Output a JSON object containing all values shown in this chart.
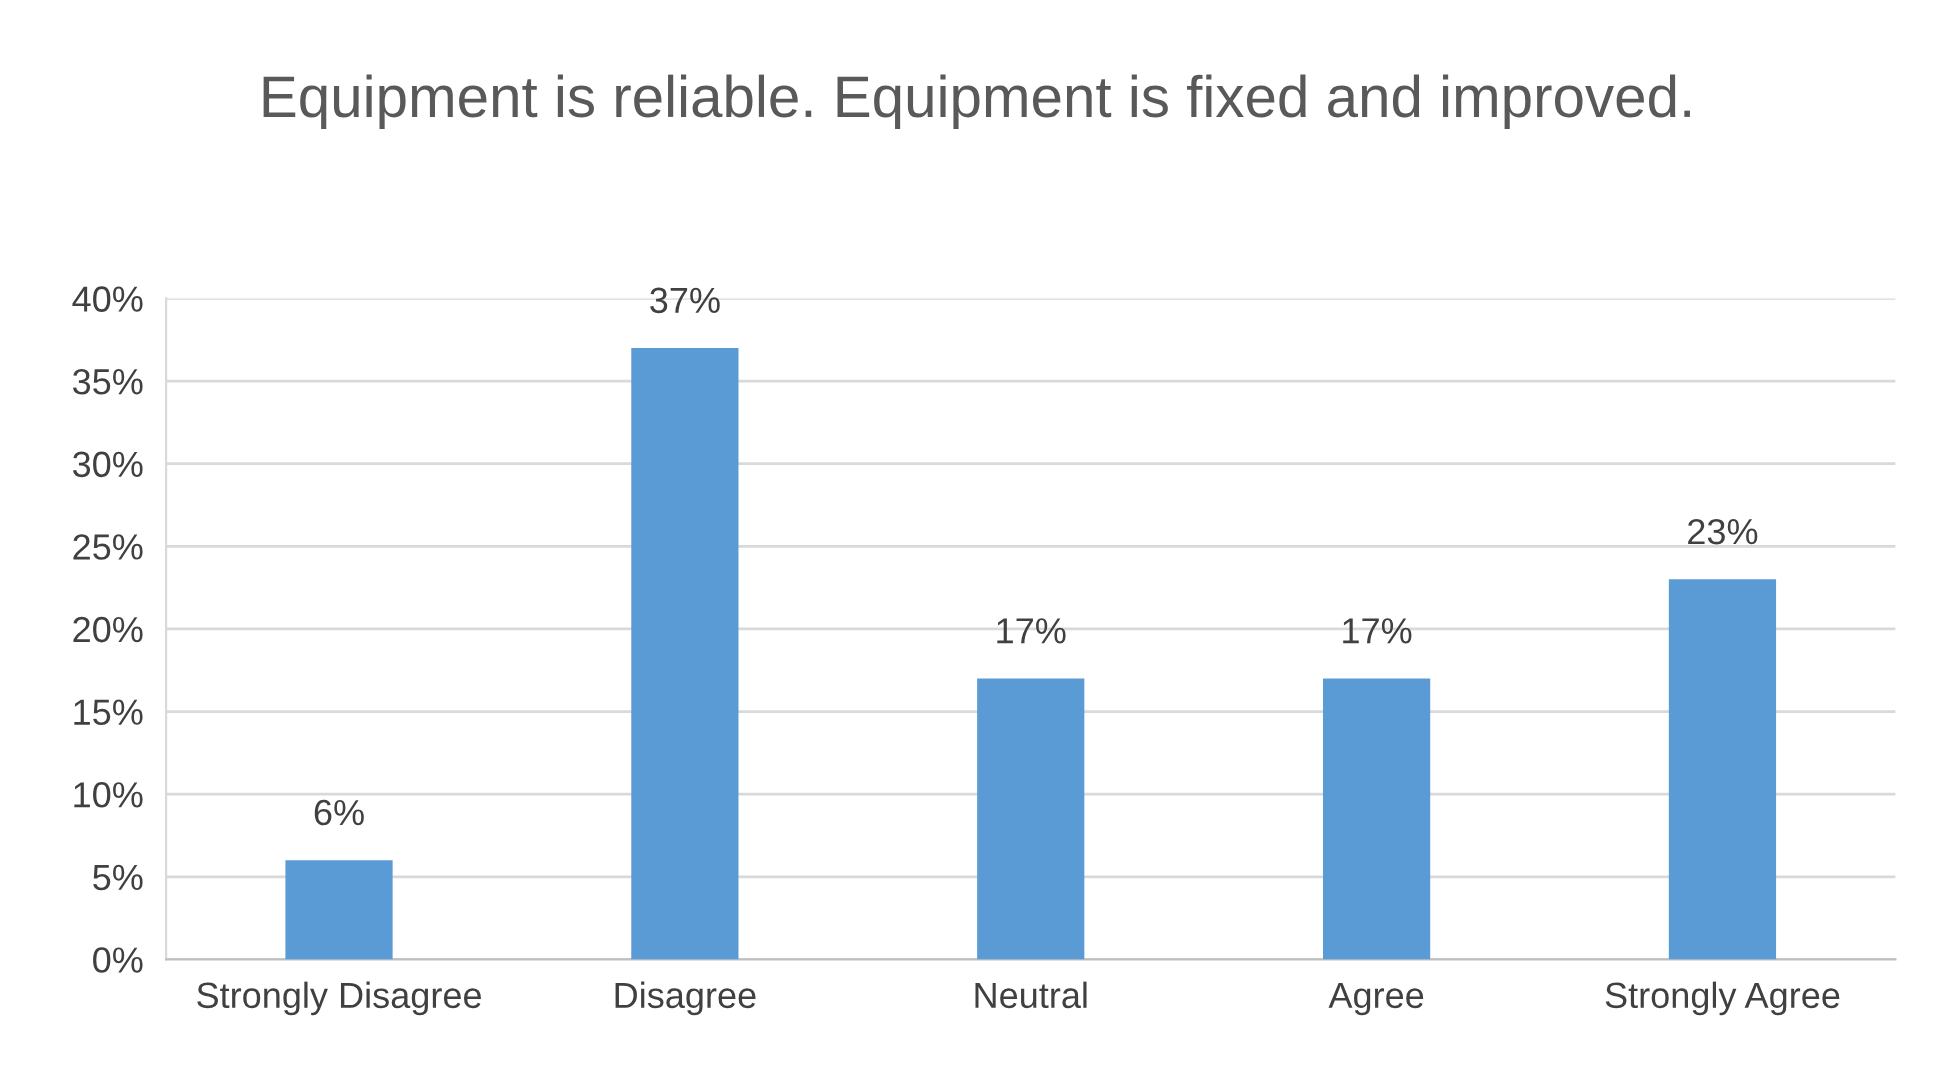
{
  "chart_data": {
    "type": "bar",
    "title": "Equipment is reliable. Equipment is fixed and improved.",
    "categories": [
      "Strongly Disagree",
      "Disagree",
      "Neutral",
      "Agree",
      "Strongly Agree"
    ],
    "values": [
      6,
      37,
      17,
      17,
      23
    ],
    "color": "#5b9bd5",
    "ylim": [
      0,
      40
    ],
    "yticks": [
      {
        "value": 0,
        "label": "0%"
      },
      {
        "value": 5,
        "label": "5%"
      },
      {
        "value": 10,
        "label": "10%"
      },
      {
        "value": 15,
        "label": "15%"
      },
      {
        "value": 20,
        "label": "20%"
      },
      {
        "value": 25,
        "label": "25%"
      },
      {
        "value": 30,
        "label": "30%"
      },
      {
        "value": 35,
        "label": "35%"
      },
      {
        "value": 40,
        "label": "40%"
      }
    ],
    "value_labels": [
      "6%",
      "37%",
      "17%",
      "17%",
      "23%"
    ],
    "grid": "y",
    "legend": false
  }
}
